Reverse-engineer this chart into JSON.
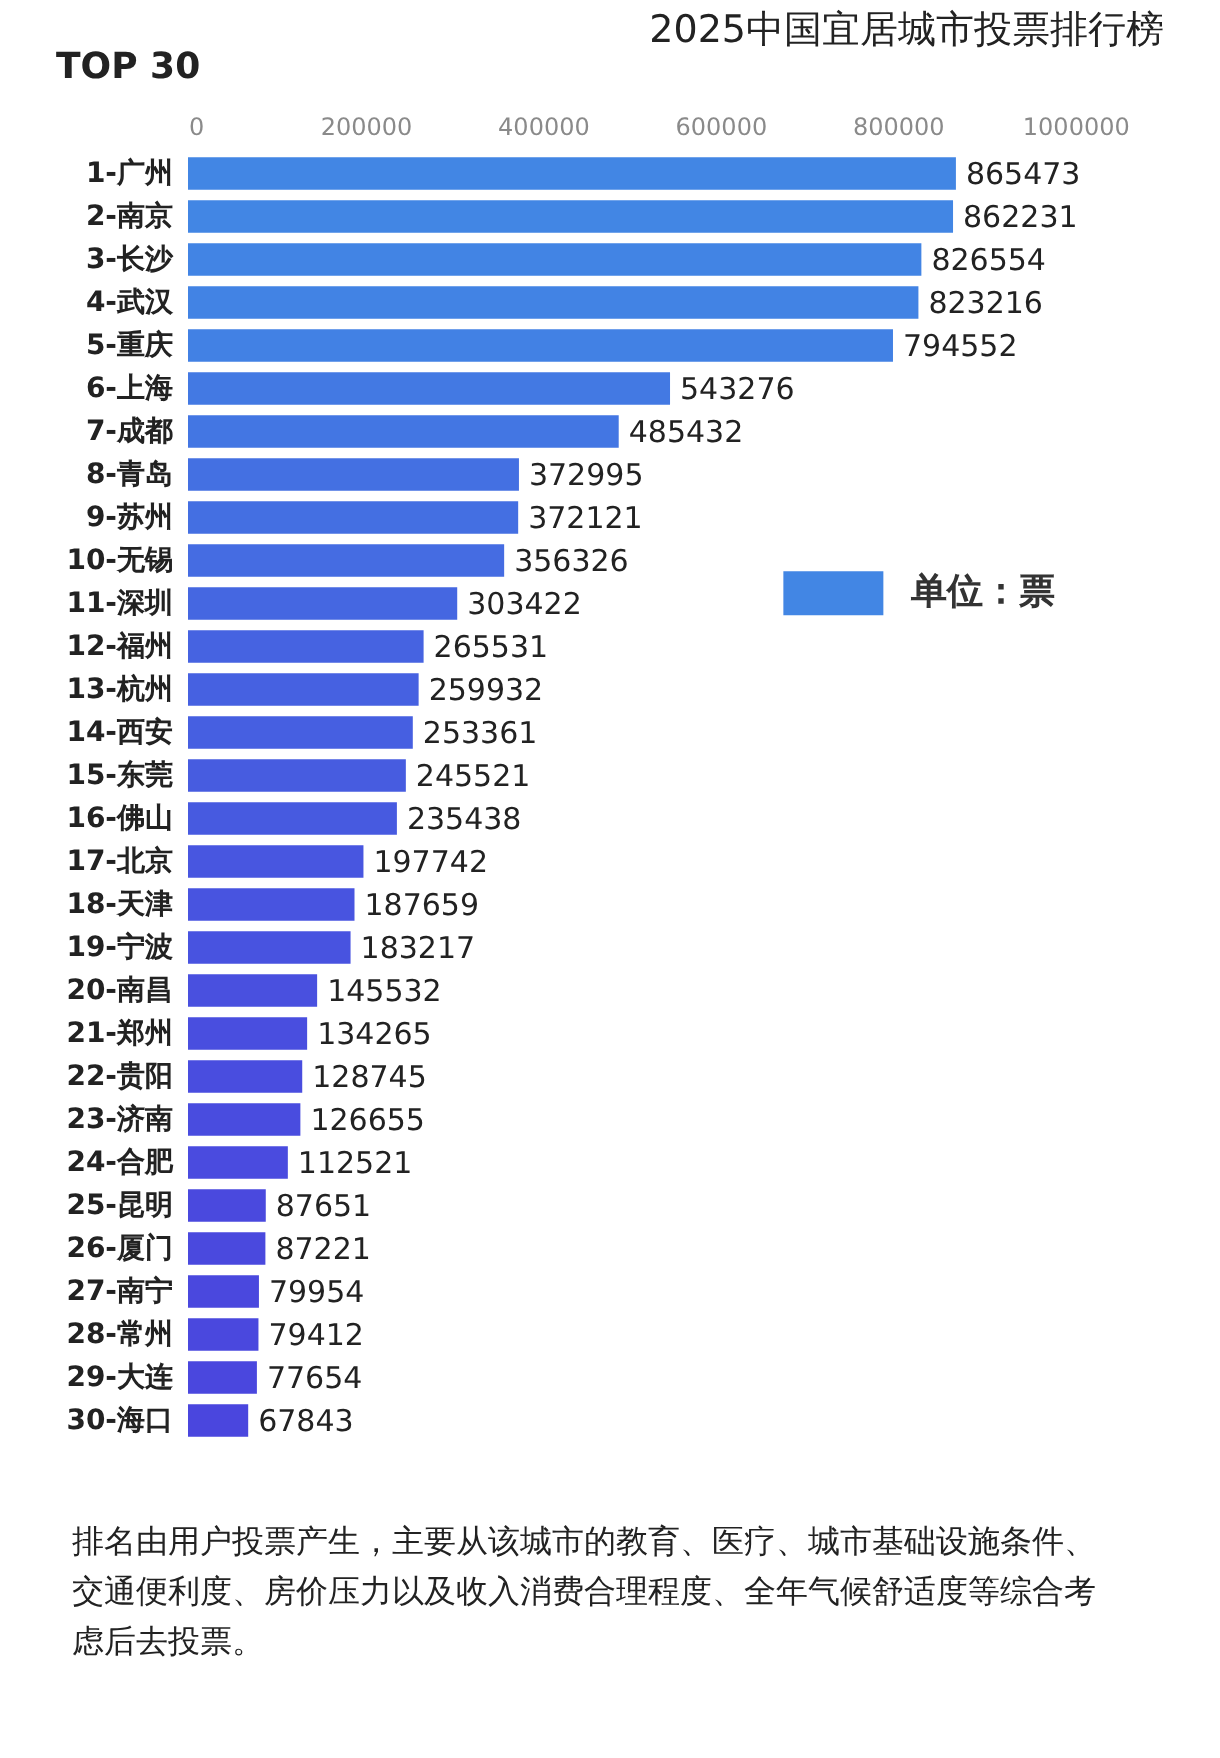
{
  "chart_data": {
    "type": "bar",
    "orientation": "horizontal",
    "title": "2025中国宜居城市投票排行榜",
    "subtitle": "TOP 30",
    "categories": [
      "1-广州",
      "2-南京",
      "3-长沙",
      "4-武汉",
      "5-重庆",
      "6-上海",
      "7-成都",
      "8-青岛",
      "9-苏州",
      "10-无锡",
      "11-深圳",
      "12-福州",
      "13-杭州",
      "14-西安",
      "15-东莞",
      "16-佛山",
      "17-北京",
      "18-天津",
      "19-宁波",
      "20-南昌",
      "21-郑州",
      "22-贵阳",
      "23-济南",
      "24-合肥",
      "25-昆明",
      "26-厦门",
      "27-南宁",
      "28-常州",
      "29-大连",
      "30-海口"
    ],
    "series": [
      {
        "name": "单位：票",
        "values": [
          865473,
          862231,
          826554,
          823216,
          794552,
          543276,
          485432,
          372995,
          372121,
          356326,
          303422,
          265531,
          259932,
          253361,
          245521,
          235438,
          197742,
          187659,
          183217,
          145532,
          134265,
          128745,
          126655,
          112521,
          87651,
          87221,
          79954,
          79412,
          77654,
          67843
        ],
        "colors": [
          "#4286e4",
          "#4286e4",
          "#4284e4",
          "#4283e4",
          "#4281e4",
          "#4379e3",
          "#4376e3",
          "#4470e2",
          "#446fe2",
          "#456ce2",
          "#4567e1",
          "#4663e1",
          "#4661e1",
          "#465fe1",
          "#475ce0",
          "#475ae0",
          "#4856e0",
          "#4854e0",
          "#4853e0",
          "#4950df",
          "#494edf",
          "#494ddf",
          "#494cdf",
          "#4a4bdf",
          "#4a49de",
          "#4a49de",
          "#4a48de",
          "#4a48de",
          "#4a47de",
          "#4a46de"
        ]
      }
    ],
    "xlim": [
      0,
      1100000
    ],
    "xticks": [
      0,
      200000,
      400000,
      600000,
      800000,
      1000000
    ],
    "data_labels": true,
    "legend": "right",
    "annotations": [
      "排名由用户投票产生，主要从该城市的教育、医疗、城市基础设施条件、交通便利度、房价压力以及收入消费合理程度、全年气候舒适度等综合考虑后去投票。"
    ]
  }
}
